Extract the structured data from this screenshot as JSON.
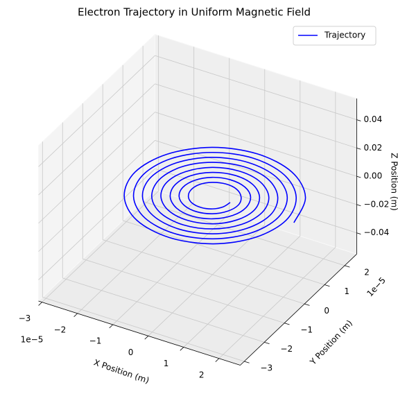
{
  "chart_data": {
    "type": "line3d",
    "title": "Electron Trajectory in Uniform Magnetic Field",
    "xlabel": "X Position (m)",
    "ylabel": "Y Position (m)",
    "zlabel": "Z Position (m)",
    "x_offset_label": "1e−5",
    "y_offset_label": "1e−5",
    "xlim": [
      -3.1e-05,
      2.6e-05
    ],
    "ylim": [
      -3.2e-05,
      2.6e-05
    ],
    "zlim": [
      -0.055,
      0.055
    ],
    "xticks": [
      {
        "value": -3e-05,
        "label": "−3"
      },
      {
        "value": -2e-05,
        "label": "−2"
      },
      {
        "value": -1e-05,
        "label": "−1"
      },
      0,
      {
        "value": 1e-05,
        "label": "1"
      },
      {
        "value": 2e-05,
        "label": "2"
      }
    ],
    "yticks": [
      {
        "value": -3e-05,
        "label": "−3"
      },
      {
        "value": -2e-05,
        "label": "−2"
      },
      {
        "value": -1e-05,
        "label": "−1"
      },
      0,
      {
        "value": 1e-05,
        "label": "1"
      },
      {
        "value": 2e-05,
        "label": "2"
      }
    ],
    "zticks": [
      {
        "value": -0.04,
        "label": "−0.04"
      },
      {
        "value": -0.02,
        "label": "−0.02"
      },
      {
        "value": 0,
        "label": "0.00"
      },
      0.02,
      0.04
    ],
    "grid": true,
    "legend": "upper right",
    "series": [
      {
        "name": "Trajectory",
        "color": "#0000ff",
        "x": [
          2.3e-05,
          1.98e-05,
          1.13e-05,
          0,
          -1.11e-05,
          -1.91e-05,
          -2.19e-05,
          -1.88e-05,
          -1.08e-05,
          0,
          1.06e-05,
          1.81e-05,
          2.08e-05,
          1.78e-05,
          1.02e-05,
          0,
          -1e-05,
          -1.72e-05,
          -1.96e-05,
          -1.68e-05,
          -9.6e-06,
          0,
          9.4e-06,
          1.62e-05,
          1.85e-05,
          1.59e-05,
          9.1e-06,
          0,
          -8.9e-06,
          -1.52e-05,
          -1.74e-05,
          -1.49e-05,
          -8.5e-06,
          0,
          8.3e-06,
          1.42e-05,
          1.63e-05,
          1.39e-05,
          7.9e-06,
          0,
          -7.8e-06,
          -1.33e-05,
          -1.51e-05,
          -1.29e-05,
          -7.4e-06,
          0,
          7.2e-06,
          1.23e-05,
          1.4e-05,
          1.2e-05,
          6.8e-06,
          0,
          -6.6e-06,
          -1.13e-05,
          -1.29e-05,
          -1.1e-05,
          -6.3e-06,
          0,
          6.1e-06,
          1.03e-05,
          1.18e-05,
          1e-05,
          5.7e-06,
          0,
          -5.5e-06,
          -9.4e-06,
          -1.06e-05,
          -9e-06,
          -5.1e-06,
          0,
          4.9e-06,
          8.4e-06,
          9.5e-06,
          8.1e-06,
          4.6e-06,
          0,
          -4.4e-06,
          -7.4e-06,
          -8.4e-06,
          -7.1e-06,
          -4e-06,
          0,
          3.8e-06,
          6.4e-06,
          7.3e-06,
          6.1e-06,
          3.4e-06,
          0,
          -3.3e-06,
          -5.5e-06,
          -6.1e-06,
          -5.1e-06,
          -2.9e-06,
          0,
          2.7e-06,
          4.5e-06,
          5e-06
        ],
        "y": [
          0,
          1.14e-05,
          1.96e-05,
          2.24e-05,
          1.93e-05,
          1.1e-05,
          0,
          -1.08e-05,
          -1.86e-05,
          -2.13e-05,
          -1.83e-05,
          -1.05e-05,
          0,
          1.03e-05,
          1.76e-05,
          2.02e-05,
          1.73e-05,
          9.9e-06,
          0,
          -9.7e-06,
          -1.67e-05,
          -1.91e-05,
          -1.64e-05,
          -9.3e-06,
          0,
          9.2e-06,
          1.57e-05,
          1.79e-05,
          1.54e-05,
          8.8e-06,
          0,
          -8.6e-06,
          -1.47e-05,
          -1.68e-05,
          -1.44e-05,
          -8.2e-06,
          0,
          8e-06,
          1.38e-05,
          1.57e-05,
          1.34e-05,
          7.7e-06,
          0,
          -7.5e-06,
          -1.28e-05,
          -1.46e-05,
          -1.25e-05,
          -7.1e-06,
          0,
          6.9e-06,
          1.18e-05,
          1.34e-05,
          1.15e-05,
          6.5e-06,
          0,
          -6.3e-06,
          -1.08e-05,
          -1.23e-05,
          -1.05e-05,
          -6e-06,
          0,
          5.8e-06,
          9.9e-06,
          1.12e-05,
          9.5e-06,
          5.4e-06,
          0,
          -5.2e-06,
          -8.9e-06,
          -1.01e-05,
          -8.6e-06,
          -4.8e-06,
          0,
          4.7e-06,
          7.9e-06,
          8.9e-06,
          7.6e-06,
          4.3e-06,
          0,
          -4.1e-06,
          -6.9e-06,
          -7.8e-06,
          -6.6e-06,
          -3.7e-06,
          0,
          3.5e-06,
          6e-06,
          6.7e-06,
          5.6e-06,
          3.2e-06,
          0,
          -3e-06,
          -5e-06,
          -5.6e-06,
          -4.7e-06,
          -2.6e-06,
          0
        ],
        "z": [
          0,
          0,
          0,
          0,
          0,
          0,
          0,
          0,
          0,
          0,
          0,
          0,
          0,
          0,
          0,
          0,
          0,
          0,
          0,
          0,
          0,
          0,
          0,
          0,
          0,
          0,
          0,
          0,
          0,
          0,
          0,
          0,
          0,
          0,
          0,
          0,
          0,
          0,
          0,
          0,
          0,
          0,
          0,
          0,
          0,
          0,
          0,
          0,
          0,
          0,
          0,
          0,
          0,
          0,
          0,
          0,
          0,
          0,
          0,
          0,
          0,
          0,
          0,
          0,
          0,
          0,
          0,
          0,
          0,
          0,
          0,
          0,
          0,
          0,
          0,
          0,
          0,
          0,
          0,
          0,
          0,
          0,
          0,
          0,
          0,
          0,
          0,
          0,
          0,
          0,
          0,
          0,
          0,
          0,
          0,
          0,
          0
        ]
      }
    ]
  }
}
